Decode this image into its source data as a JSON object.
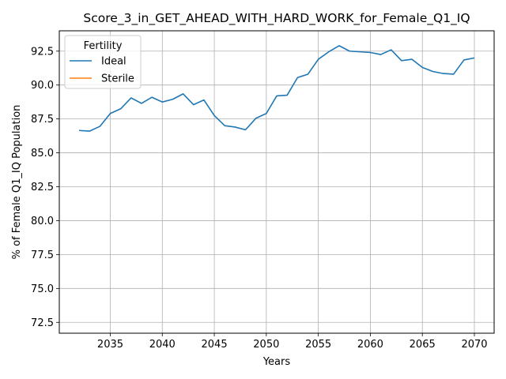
{
  "chart_data": {
    "type": "line",
    "title": "Score_3_in_GET_AHEAD_WITH_HARD_WORK_for_Female_Q1_IQ",
    "xlabel": "Years",
    "ylabel": "% of Female Q1_IQ Population",
    "xlim": [
      2030.1,
      2071.9
    ],
    "ylim": [
      71.7,
      94.0
    ],
    "x_ticks": [
      2035,
      2040,
      2045,
      2050,
      2055,
      2060,
      2065,
      2070
    ],
    "y_ticks": [
      72.5,
      75.0,
      77.5,
      80.0,
      82.5,
      85.0,
      87.5,
      90.0,
      92.5
    ],
    "grid": true,
    "legend": {
      "title": "Fertility",
      "position": "top-left"
    },
    "series": [
      {
        "name": "Ideal",
        "color": "#1f77b4",
        "x": [
          2032,
          2033,
          2034,
          2035,
          2036,
          2037,
          2038,
          2039,
          2040,
          2041,
          2042,
          2043,
          2044,
          2045,
          2046,
          2047,
          2048,
          2049,
          2050,
          2051,
          2052,
          2053,
          2054,
          2055,
          2056,
          2057,
          2058,
          2059,
          2060,
          2061,
          2062,
          2063,
          2064,
          2065,
          2066,
          2067,
          2068,
          2069,
          2070
        ],
        "values": [
          86.65,
          86.6,
          86.95,
          87.9,
          88.25,
          89.05,
          88.65,
          89.1,
          88.75,
          88.95,
          89.35,
          88.55,
          88.9,
          87.75,
          87.0,
          86.9,
          86.7,
          87.55,
          87.9,
          89.2,
          89.25,
          90.55,
          90.8,
          91.9,
          92.45,
          92.9,
          92.5,
          92.45,
          92.4,
          92.25,
          92.6,
          91.8,
          91.9,
          91.3,
          91.0,
          90.85,
          90.8,
          91.85,
          92.0
        ]
      },
      {
        "name": "Sterile",
        "color": "#ff7f0e",
        "x": [],
        "values": []
      }
    ]
  }
}
